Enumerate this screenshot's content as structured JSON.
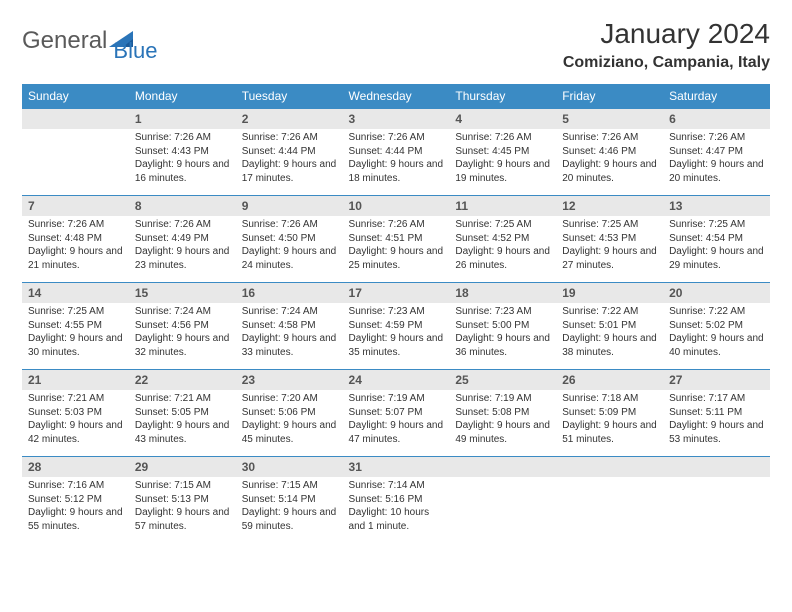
{
  "logo": {
    "text1": "General",
    "text2": "Blue",
    "color_gray": "#6a6a6a",
    "color_blue": "#2a74b8"
  },
  "header": {
    "title": "January 2024",
    "location": "Comiziano, Campania, Italy"
  },
  "colors": {
    "header_bg": "#3b8bc4",
    "header_text": "#ffffff",
    "date_bg": "#e8e8e8",
    "border": "#3b8bc4",
    "body_text": "#333333"
  },
  "day_names": [
    "Sunday",
    "Monday",
    "Tuesday",
    "Wednesday",
    "Thursday",
    "Friday",
    "Saturday"
  ],
  "weeks": [
    {
      "dates": [
        "",
        "1",
        "2",
        "3",
        "4",
        "5",
        "6"
      ],
      "details": [
        "",
        "Sunrise: 7:26 AM\nSunset: 4:43 PM\nDaylight: 9 hours and 16 minutes.",
        "Sunrise: 7:26 AM\nSunset: 4:44 PM\nDaylight: 9 hours and 17 minutes.",
        "Sunrise: 7:26 AM\nSunset: 4:44 PM\nDaylight: 9 hours and 18 minutes.",
        "Sunrise: 7:26 AM\nSunset: 4:45 PM\nDaylight: 9 hours and 19 minutes.",
        "Sunrise: 7:26 AM\nSunset: 4:46 PM\nDaylight: 9 hours and 20 minutes.",
        "Sunrise: 7:26 AM\nSunset: 4:47 PM\nDaylight: 9 hours and 20 minutes."
      ]
    },
    {
      "dates": [
        "7",
        "8",
        "9",
        "10",
        "11",
        "12",
        "13"
      ],
      "details": [
        "Sunrise: 7:26 AM\nSunset: 4:48 PM\nDaylight: 9 hours and 21 minutes.",
        "Sunrise: 7:26 AM\nSunset: 4:49 PM\nDaylight: 9 hours and 23 minutes.",
        "Sunrise: 7:26 AM\nSunset: 4:50 PM\nDaylight: 9 hours and 24 minutes.",
        "Sunrise: 7:26 AM\nSunset: 4:51 PM\nDaylight: 9 hours and 25 minutes.",
        "Sunrise: 7:25 AM\nSunset: 4:52 PM\nDaylight: 9 hours and 26 minutes.",
        "Sunrise: 7:25 AM\nSunset: 4:53 PM\nDaylight: 9 hours and 27 minutes.",
        "Sunrise: 7:25 AM\nSunset: 4:54 PM\nDaylight: 9 hours and 29 minutes."
      ]
    },
    {
      "dates": [
        "14",
        "15",
        "16",
        "17",
        "18",
        "19",
        "20"
      ],
      "details": [
        "Sunrise: 7:25 AM\nSunset: 4:55 PM\nDaylight: 9 hours and 30 minutes.",
        "Sunrise: 7:24 AM\nSunset: 4:56 PM\nDaylight: 9 hours and 32 minutes.",
        "Sunrise: 7:24 AM\nSunset: 4:58 PM\nDaylight: 9 hours and 33 minutes.",
        "Sunrise: 7:23 AM\nSunset: 4:59 PM\nDaylight: 9 hours and 35 minutes.",
        "Sunrise: 7:23 AM\nSunset: 5:00 PM\nDaylight: 9 hours and 36 minutes.",
        "Sunrise: 7:22 AM\nSunset: 5:01 PM\nDaylight: 9 hours and 38 minutes.",
        "Sunrise: 7:22 AM\nSunset: 5:02 PM\nDaylight: 9 hours and 40 minutes."
      ]
    },
    {
      "dates": [
        "21",
        "22",
        "23",
        "24",
        "25",
        "26",
        "27"
      ],
      "details": [
        "Sunrise: 7:21 AM\nSunset: 5:03 PM\nDaylight: 9 hours and 42 minutes.",
        "Sunrise: 7:21 AM\nSunset: 5:05 PM\nDaylight: 9 hours and 43 minutes.",
        "Sunrise: 7:20 AM\nSunset: 5:06 PM\nDaylight: 9 hours and 45 minutes.",
        "Sunrise: 7:19 AM\nSunset: 5:07 PM\nDaylight: 9 hours and 47 minutes.",
        "Sunrise: 7:19 AM\nSunset: 5:08 PM\nDaylight: 9 hours and 49 minutes.",
        "Sunrise: 7:18 AM\nSunset: 5:09 PM\nDaylight: 9 hours and 51 minutes.",
        "Sunrise: 7:17 AM\nSunset: 5:11 PM\nDaylight: 9 hours and 53 minutes."
      ]
    },
    {
      "dates": [
        "28",
        "29",
        "30",
        "31",
        "",
        "",
        ""
      ],
      "details": [
        "Sunrise: 7:16 AM\nSunset: 5:12 PM\nDaylight: 9 hours and 55 minutes.",
        "Sunrise: 7:15 AM\nSunset: 5:13 PM\nDaylight: 9 hours and 57 minutes.",
        "Sunrise: 7:15 AM\nSunset: 5:14 PM\nDaylight: 9 hours and 59 minutes.",
        "Sunrise: 7:14 AM\nSunset: 5:16 PM\nDaylight: 10 hours and 1 minute.",
        "",
        "",
        ""
      ]
    }
  ]
}
